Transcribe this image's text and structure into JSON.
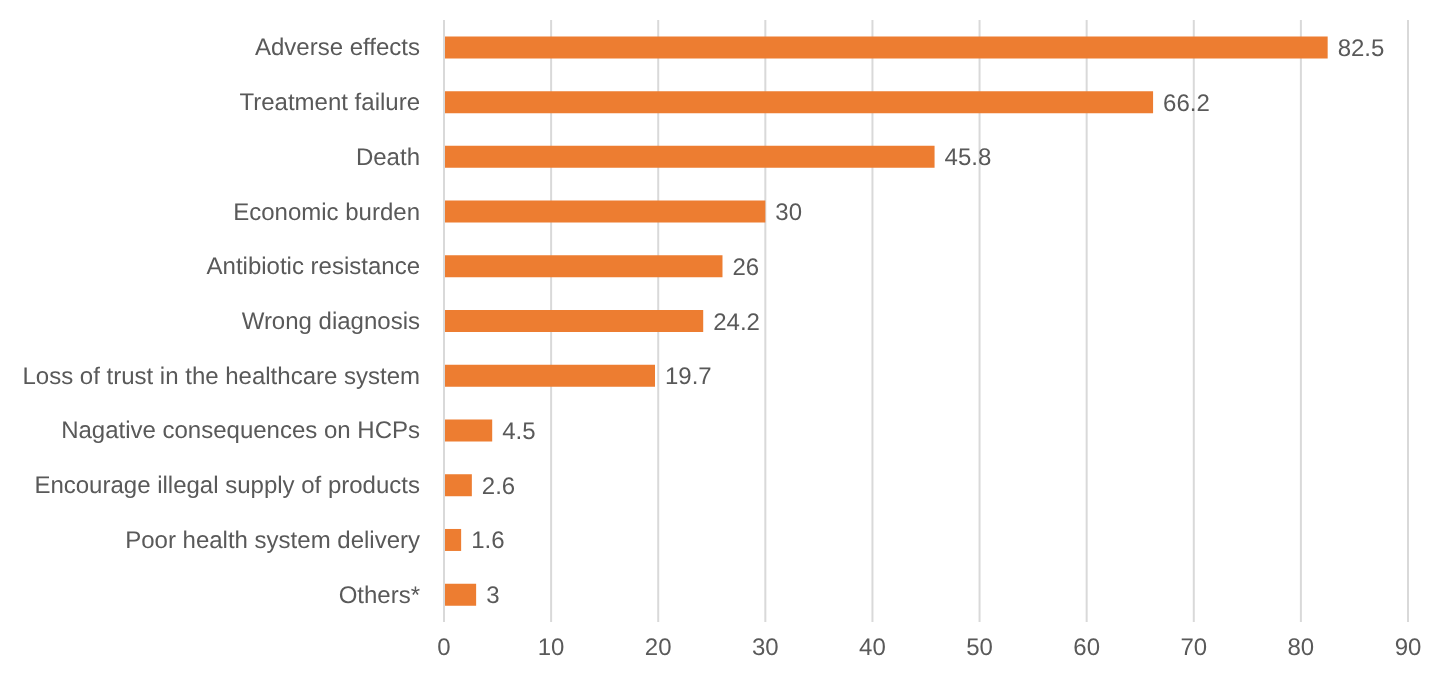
{
  "chart_data": {
    "type": "bar",
    "orientation": "horizontal",
    "categories": [
      "Adverse effects",
      "Treatment failure",
      "Death",
      "Economic burden",
      "Antibiotic resistance",
      "Wrong diagnosis",
      "Loss of trust in the healthcare system",
      "Nagative consequences on HCPs",
      "Encourage illegal supply of products",
      "Poor health system delivery",
      "Others*"
    ],
    "values": [
      82.5,
      66.2,
      45.8,
      30,
      26,
      24.2,
      19.7,
      4.5,
      2.6,
      1.6,
      3
    ],
    "color": "#ed7d31",
    "xlim": [
      0,
      90
    ],
    "xticks": [
      0,
      10,
      20,
      30,
      40,
      50,
      60,
      70,
      80,
      90
    ],
    "grid": "x",
    "data_labels": true
  }
}
